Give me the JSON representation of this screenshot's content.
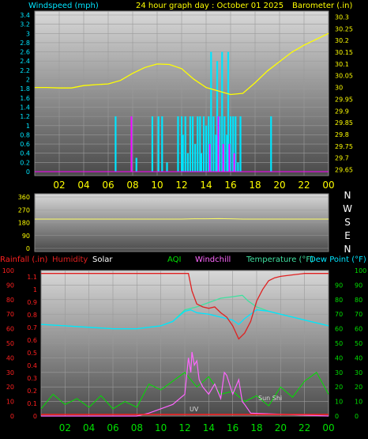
{
  "colors": {
    "wind": "#00e5ff",
    "gust": "#ff00ff",
    "baro": "#ffff00",
    "winddir": "#ffff66",
    "rain": "#ff2020",
    "humidity": "#e02020",
    "solar": "#ffffff",
    "aqi": "#00e000",
    "windchill": "#ff66ff",
    "temp": "#40e0a0",
    "dew": "#00e5ff",
    "sun": "#00ff00",
    "uv": "#b0b0b0"
  },
  "chart_data": [
    {
      "type": "line",
      "title": "24 hour graph day : October 01 2025",
      "ylabel_left": "Windspeed (mph)",
      "ylabel_right": "Barometer (.in)",
      "x_ticks": [
        "02",
        "04",
        "06",
        "08",
        "10",
        "12",
        "14",
        "16",
        "18",
        "20",
        "22",
        "00"
      ],
      "y_left_ticks": [
        "3.4",
        "3.2",
        "3",
        "2.8",
        "2.6",
        "2.4",
        "2.2",
        "2",
        "1.8",
        "1.6",
        "1.4",
        "1.2",
        "1",
        "0.8",
        "0.6",
        "0.4",
        "0.2",
        "0"
      ],
      "y_right_ticks": [
        "30.3",
        "30.25",
        "30.2",
        "30.15",
        "30.1",
        "30.05",
        "30",
        "29.95",
        "29.9",
        "29.85",
        "29.8",
        "29.75",
        "29.7",
        "29.65"
      ],
      "ylim_left": [
        0,
        3.4
      ],
      "ylim_right": [
        29.625,
        30.325
      ],
      "grid": true,
      "series": [
        {
          "name": "Windspeed",
          "axis": "left",
          "style": "bars",
          "x": [
            6.6,
            7.9,
            8.3,
            9.6,
            10.1,
            10.4,
            10.8,
            11.7,
            12.0,
            12.1,
            12.3,
            12.5,
            12.7,
            12.9,
            13.1,
            13.3,
            13.5,
            13.6,
            13.8,
            14.0,
            14.2,
            14.4,
            14.6,
            14.8,
            14.9,
            15.1,
            15.3,
            15.5,
            15.7,
            15.8,
            16.0,
            16.2,
            16.4,
            16.6,
            16.8,
            19.3
          ],
          "y": [
            1.2,
            1.2,
            0.3,
            1.2,
            1.2,
            1.2,
            0.2,
            1.2,
            1.2,
            0.8,
            1.2,
            0.4,
            1.2,
            1.2,
            0.6,
            1.2,
            1.2,
            0.4,
            1.2,
            1.0,
            1.2,
            2.6,
            1.2,
            0.8,
            2.4,
            1.2,
            2.6,
            1.2,
            0.8,
            2.6,
            1.2,
            1.2,
            1.2,
            0.2,
            1.2,
            1.2
          ]
        },
        {
          "name": "Gust",
          "axis": "left",
          "style": "bars",
          "x": [
            7.9,
            14.3,
            15.0,
            15.4,
            15.9,
            16.3
          ],
          "y": [
            1.2,
            0.6,
            1.2,
            0.6,
            0.6,
            0.4
          ]
        },
        {
          "name": "Barometer",
          "axis": "right",
          "style": "line",
          "x": [
            0,
            1,
            2,
            3,
            4,
            5,
            6,
            7,
            8,
            9,
            10,
            11,
            12,
            13,
            14,
            15,
            16,
            17,
            18,
            19,
            20,
            21,
            22,
            23,
            24
          ],
          "y": [
            30.0,
            30.0,
            29.998,
            29.998,
            30.008,
            30.012,
            30.015,
            30.03,
            30.06,
            30.085,
            30.1,
            30.098,
            30.08,
            30.035,
            30.0,
            29.985,
            29.97,
            29.975,
            30.02,
            30.07,
            30.11,
            30.15,
            30.18,
            30.205,
            30.23
          ]
        }
      ]
    },
    {
      "type": "line",
      "ylabel_right": "NWSEN",
      "x_ticks": [],
      "y_ticks": [
        "360",
        "270",
        "180",
        "90",
        "0"
      ],
      "ylim": [
        0,
        360
      ],
      "series": [
        {
          "name": "Wind Direction",
          "x": [
            0,
            6,
            12,
            13,
            14,
            15,
            16,
            17,
            18,
            24
          ],
          "y": [
            205,
            205,
            205,
            207,
            207,
            208,
            207,
            205,
            205,
            205
          ]
        }
      ]
    },
    {
      "type": "line",
      "legend": [
        "Rainfall (.in)",
        "Humidity",
        "Solar",
        "AQI",
        "Windchill",
        "Temperature (°F)",
        "Dew Point (°F)"
      ],
      "x_ticks": [
        "02",
        "04",
        "06",
        "08",
        "10",
        "12",
        "14",
        "16",
        "18",
        "20",
        "22",
        "00"
      ],
      "y_left_outer_ticks": [
        "100",
        "90",
        "80",
        "70",
        "60",
        "50",
        "40",
        "30",
        "20",
        "10",
        "0"
      ],
      "y_left_inner_ticks": [
        "1.1",
        "1",
        "0.9",
        "0.8",
        "0.7",
        "0.6",
        "0.5",
        "0.4",
        "0.3",
        "0.2",
        "0.1",
        "0"
      ],
      "y_right_inner_ticks": [
        "90",
        "80",
        "70",
        "60",
        "50",
        "40",
        "30",
        "20",
        "10",
        "0"
      ],
      "y_right_outer_ticks": [
        "100",
        "90",
        "80",
        "70",
        "60",
        "50",
        "40",
        "30",
        "20",
        "10",
        "0"
      ],
      "ylim": [
        0,
        100
      ],
      "annotations": [
        "Sun Shi",
        "UV"
      ],
      "series": [
        {
          "name": "Humidity",
          "x": [
            0,
            12.3,
            12.6,
            13.0,
            13.5,
            14.0,
            14.5,
            15.0,
            15.5,
            16.0,
            16.5,
            17.0,
            17.5,
            18.0,
            18.5,
            19.0,
            19.5,
            20.0,
            21.0,
            22.0,
            23.0,
            24.0
          ],
          "y": [
            98,
            98,
            86,
            77,
            75,
            74,
            75,
            71,
            68,
            62,
            53,
            57,
            65,
            79,
            87,
            93,
            95,
            96,
            97,
            98,
            98,
            98
          ]
        },
        {
          "name": "Temperature (°F)",
          "x": [
            0,
            2,
            4,
            6,
            8,
            10,
            11,
            12,
            13,
            14,
            15,
            16,
            16.8,
            17.3,
            18,
            19,
            20,
            21,
            22,
            23,
            24
          ],
          "y": [
            63,
            62,
            61,
            60,
            60,
            62,
            65,
            73,
            75,
            78,
            81,
            82,
            83,
            79,
            75,
            72,
            70,
            68,
            66,
            64,
            62
          ]
        },
        {
          "name": "Dew Point (°F)",
          "x": [
            0,
            2,
            4,
            6,
            8,
            10,
            11,
            12,
            12.5,
            13,
            14,
            15,
            16,
            16.5,
            17,
            18,
            19,
            20,
            21,
            22,
            23,
            24
          ],
          "y": [
            63,
            62,
            61,
            60,
            60,
            62,
            65,
            72,
            73,
            71,
            70,
            68,
            66,
            63,
            67,
            73,
            72,
            70,
            68,
            66,
            64,
            62
          ]
        },
        {
          "name": "Solar",
          "x": [
            0,
            8.0,
            9.0,
            10.0,
            11.0,
            12.0,
            12.3,
            12.5,
            12.6,
            12.8,
            13.0,
            13.2,
            13.5,
            14.0,
            14.5,
            15.0,
            15.3,
            15.5,
            16.0,
            16.5,
            16.8,
            17.0,
            17.5,
            24.0
          ],
          "y": [
            0,
            0,
            2,
            5,
            8,
            15,
            40,
            30,
            44,
            35,
            38,
            25,
            20,
            15,
            22,
            12,
            30,
            28,
            15,
            25,
            10,
            8,
            2,
            0
          ]
        },
        {
          "name": "AQI",
          "x": [
            0,
            1,
            2,
            3,
            4,
            5,
            6,
            7,
            8,
            9,
            10,
            11,
            12,
            13,
            14,
            15,
            16,
            17,
            18,
            19,
            20,
            21,
            22,
            23,
            24
          ],
          "y": [
            5,
            15,
            8,
            12,
            6,
            14,
            5,
            10,
            6,
            22,
            18,
            24,
            30,
            20,
            27,
            15,
            17,
            10,
            14,
            7,
            20,
            13,
            24,
            30,
            15
          ]
        },
        {
          "name": "Rainfall (.in)",
          "x": [
            0,
            24
          ],
          "y": [
            0,
            0
          ]
        }
      ]
    }
  ]
}
